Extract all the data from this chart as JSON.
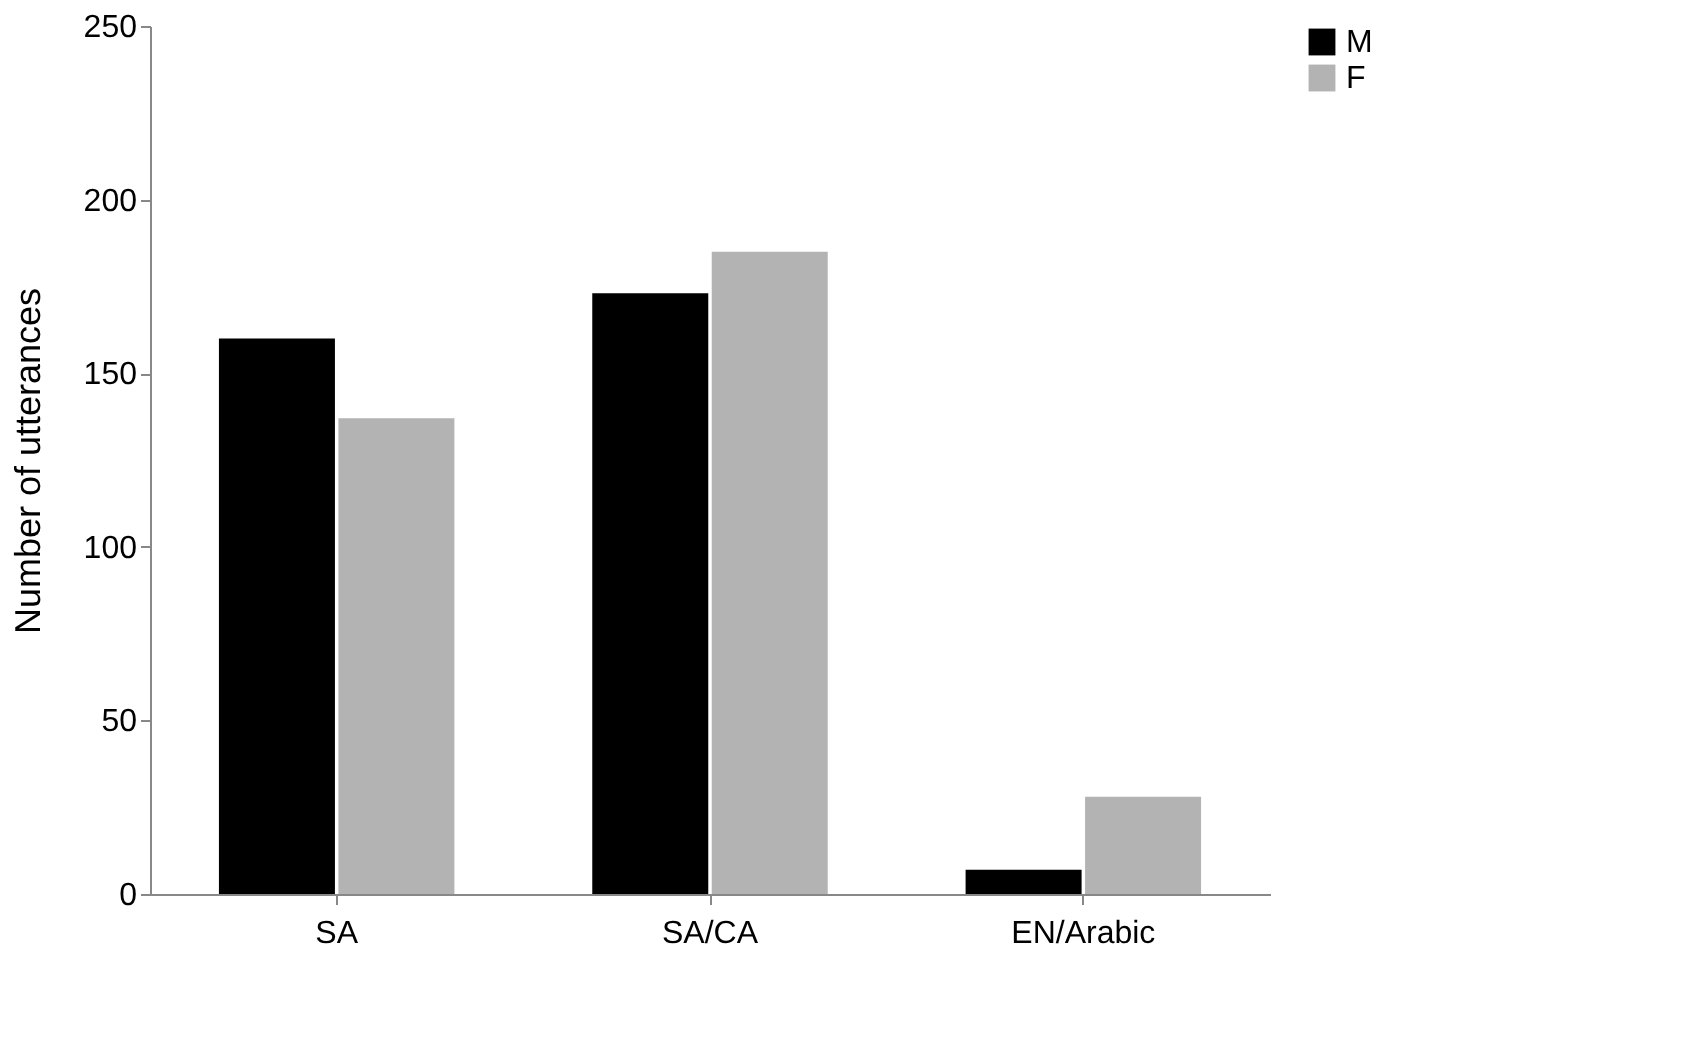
{
  "chart_data": {
    "type": "bar",
    "ylabel": "Number of utterances",
    "categories": [
      "SA",
      "SA/CA",
      "EN/Arabic"
    ],
    "series": [
      {
        "name": "M",
        "color": "#000000",
        "values": [
          160,
          173,
          7
        ]
      },
      {
        "name": "F",
        "color": "#b3b3b3",
        "values": [
          137,
          185,
          28
        ]
      }
    ],
    "ylim": [
      0,
      250
    ],
    "yticks": [
      0,
      50,
      100,
      150,
      200,
      250
    ],
    "grid": false,
    "legend": "right"
  }
}
